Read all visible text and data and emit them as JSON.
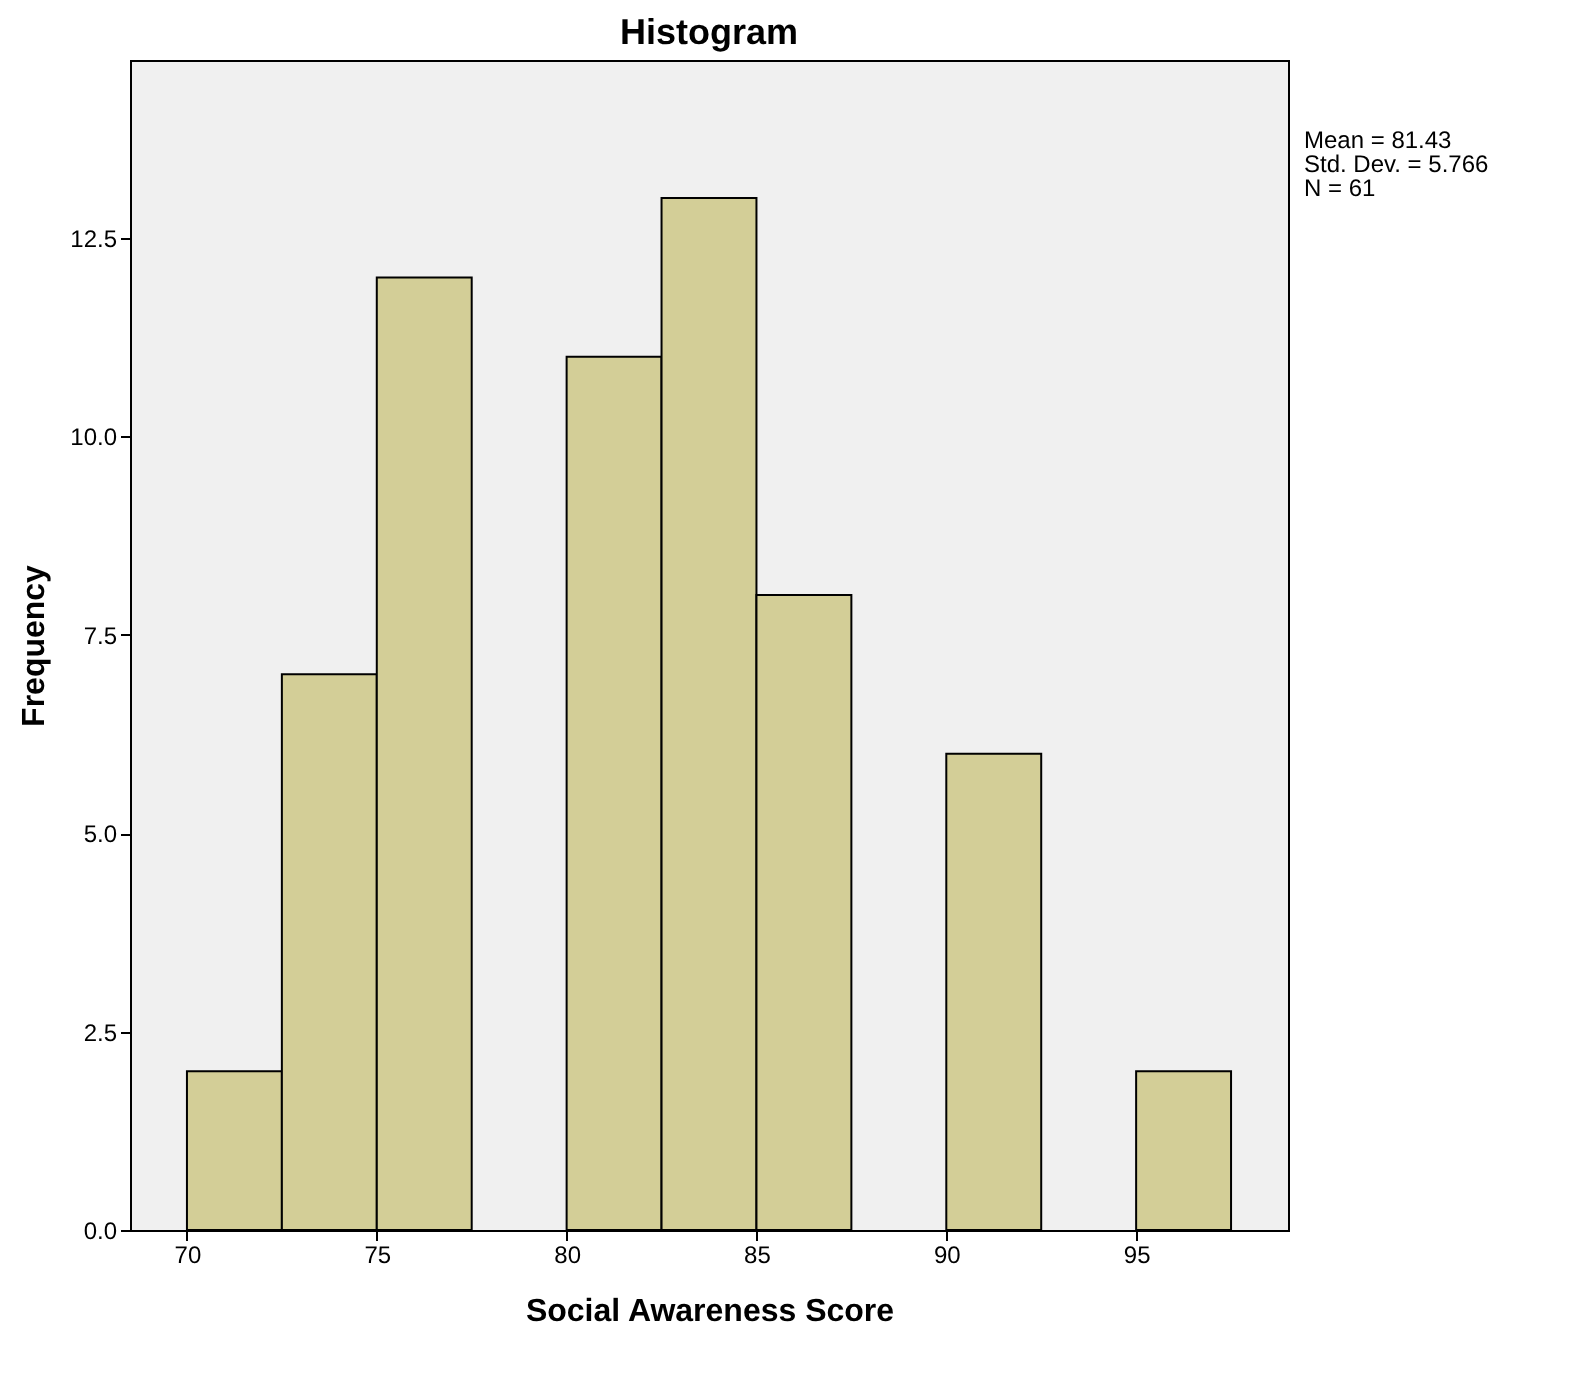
{
  "chart_data": {
    "type": "histogram",
    "title": "Histogram",
    "xlabel": "Social Awareness Score",
    "ylabel": "Frequency",
    "bins": [
      70,
      72.5,
      75,
      77.5,
      80,
      82.5,
      85,
      87.5,
      90,
      92.5,
      95,
      97.5
    ],
    "values": [
      2,
      7,
      12,
      0,
      11,
      13,
      8,
      0,
      6,
      0,
      2
    ],
    "color": "#d3ce97",
    "xlim": [
      68.5,
      99
    ],
    "xticks": [
      70,
      75,
      80,
      85,
      90,
      95
    ],
    "ylim": [
      0,
      14.74
    ],
    "yticks": [
      {
        "value": 0,
        "label": "0.0"
      },
      {
        "value": 2.5,
        "label": "2.5"
      },
      {
        "value": 5,
        "label": "5.0"
      },
      {
        "value": 7.5,
        "label": "7.5"
      },
      {
        "value": 10,
        "label": "10.0"
      },
      {
        "value": 12.5,
        "label": "12.5"
      }
    ],
    "grid": false,
    "annotations": [
      "Mean = 81.43",
      "Std. Dev. = 5.766",
      "N = 61"
    ]
  }
}
